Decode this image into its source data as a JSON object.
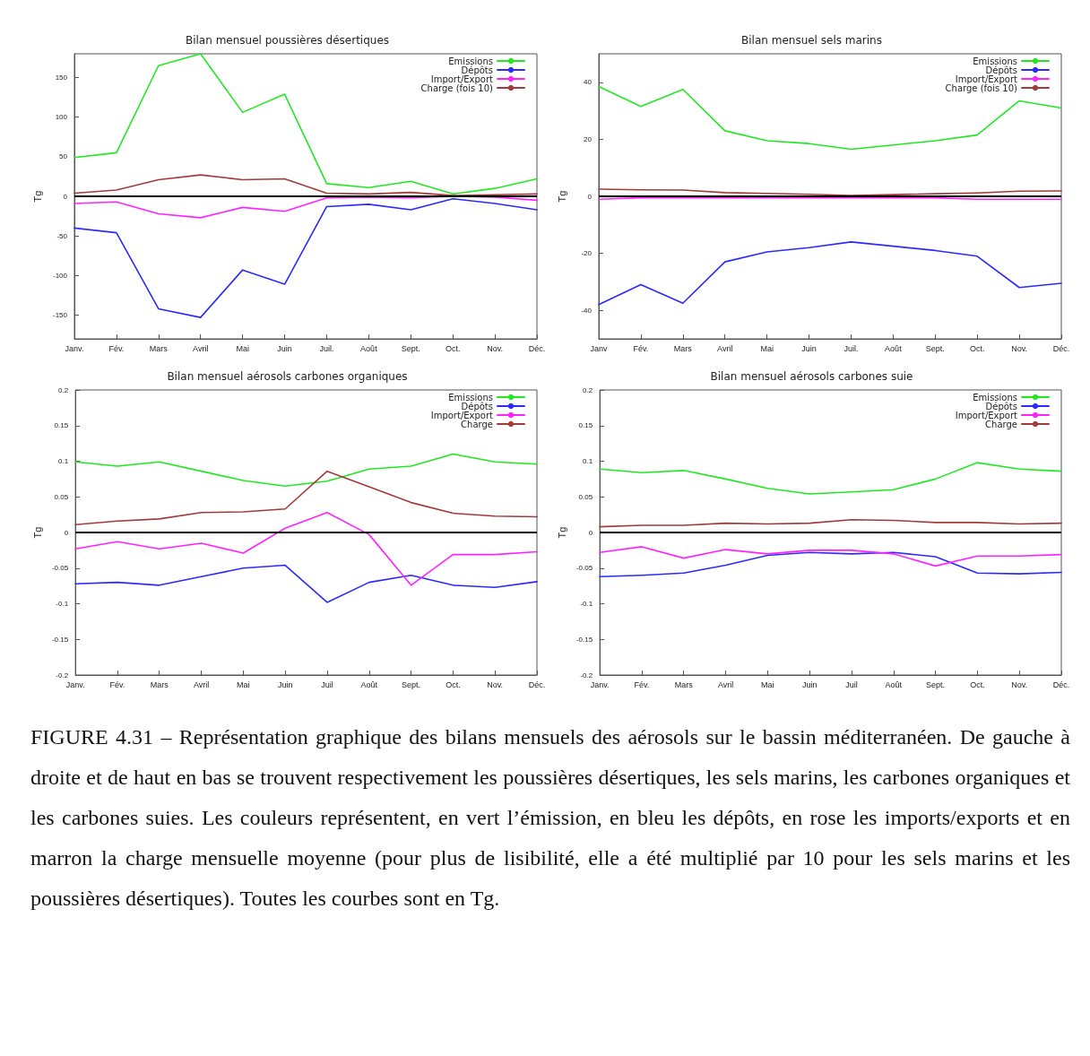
{
  "chart_data": [
    {
      "type": "line",
      "title": "Bilan mensuel poussières désertiques",
      "ylabel": "Tg",
      "categories": [
        "Janv.",
        "Fév.",
        "Mars",
        "Avril",
        "Mai",
        "Juin",
        "Juil.",
        "Août",
        "Sept.",
        "Oct.",
        "Nov.",
        "Déc."
      ],
      "ylim": [
        -180,
        180
      ],
      "yticks": [
        -150,
        -100,
        -50,
        0,
        50,
        100,
        150
      ],
      "legend": "top right",
      "ref_lines": [
        {
          "axis": "y",
          "value": 0,
          "color": "#000000"
        }
      ],
      "series": [
        {
          "name": "Emissions",
          "color": "#22e822",
          "values": [
            49,
            55,
            165,
            180,
            106,
            129,
            16,
            11,
            19,
            3,
            10,
            22
          ]
        },
        {
          "name": "Dépôts",
          "color": "#2a2aff",
          "values": [
            -40,
            -46,
            -142,
            -153,
            -93,
            -111,
            -13,
            -10,
            -17,
            -3,
            -9,
            -17
          ]
        },
        {
          "name": "Import/Export",
          "color": "#ff22ff",
          "values": [
            -9,
            -7,
            -22,
            -27,
            -14,
            -19,
            -2,
            -1,
            -2,
            0,
            -1,
            -5
          ]
        },
        {
          "name": "Charge (fois 10)",
          "color": "#a33a3a",
          "values": [
            4,
            8,
            21,
            27,
            21,
            22,
            4,
            3,
            5,
            1,
            2,
            3
          ]
        }
      ]
    },
    {
      "type": "line",
      "title": "Bilan mensuel sels marins",
      "ylabel": "Tg",
      "categories": [
        "Janv",
        "Fév.",
        "Mars",
        "Avril",
        "Mai",
        "Juin",
        "Juil.",
        "Août",
        "Sept.",
        "Oct.",
        "Nov.",
        "Déc."
      ],
      "ylim": [
        -50,
        50
      ],
      "yticks": [
        -40,
        -20,
        0,
        20,
        40
      ],
      "legend": "top right",
      "ref_lines": [
        {
          "axis": "y",
          "value": 0,
          "color": "#000000"
        }
      ],
      "series": [
        {
          "name": "Emissions",
          "color": "#22e822",
          "values": [
            38.5,
            31.5,
            37.5,
            23,
            19.5,
            18.5,
            16.5,
            18,
            19.5,
            21.5,
            33.5,
            31
          ]
        },
        {
          "name": "Dépôts",
          "color": "#2a2aff",
          "values": [
            -38,
            -31,
            -37.5,
            -23,
            -19.5,
            -18,
            -16,
            -17.5,
            -19,
            -21,
            -32,
            -30.5
          ]
        },
        {
          "name": "Import/Export",
          "color": "#ff22ff",
          "values": [
            -1,
            -0.5,
            -0.5,
            -0.5,
            -0.5,
            -0.5,
            -0.5,
            -0.5,
            -0.5,
            -1,
            -1,
            -1
          ]
        },
        {
          "name": "Charge (fois 10)",
          "color": "#a33a3a",
          "values": [
            2.5,
            2.3,
            2.2,
            1.3,
            1,
            0.7,
            0.3,
            0.6,
            0.9,
            1.2,
            1.8,
            1.9
          ]
        }
      ]
    },
    {
      "type": "line",
      "title": "Bilan mensuel aérosols carbones organiques",
      "ylabel": "Tg",
      "categories": [
        "Janv.",
        "Fév.",
        "Mars",
        "Avril",
        "Mai",
        "Juin",
        "Juil",
        "Août",
        "Sept.",
        "Oct.",
        "Nov.",
        "Déc."
      ],
      "ylim": [
        -0.2,
        0.2
      ],
      "yticks": [
        -0.2,
        -0.15,
        -0.1,
        -0.05,
        0,
        0.05,
        0.1,
        0.15,
        0.2
      ],
      "legend": "top right",
      "ref_lines": [
        {
          "axis": "y",
          "value": 0,
          "color": "#000000"
        }
      ],
      "series": [
        {
          "name": "Emissions",
          "color": "#22e822",
          "values": [
            0.099,
            0.093,
            0.099,
            0.086,
            0.073,
            0.065,
            0.072,
            0.089,
            0.093,
            0.11,
            0.099,
            0.096
          ]
        },
        {
          "name": "Dépôts",
          "color": "#2a2aff",
          "values": [
            -0.072,
            -0.07,
            -0.074,
            -0.062,
            -0.05,
            -0.046,
            -0.098,
            -0.07,
            -0.06,
            -0.074,
            -0.077,
            -0.069
          ]
        },
        {
          "name": "Import/Export",
          "color": "#ff22ff",
          "values": [
            -0.023,
            -0.013,
            -0.023,
            -0.015,
            -0.029,
            0.006,
            0.028,
            -0.003,
            -0.074,
            -0.031,
            -0.031,
            -0.027
          ]
        },
        {
          "name": "Charge",
          "color": "#a33a3a",
          "values": [
            0.011,
            0.016,
            0.019,
            0.028,
            0.029,
            0.033,
            0.086,
            0.064,
            0.042,
            0.027,
            0.023,
            0.022
          ]
        }
      ]
    },
    {
      "type": "line",
      "title": "Bilan mensuel aérosols carbones suie",
      "ylabel": "Tg",
      "categories": [
        "Janv.",
        "Fév.",
        "Mars",
        "Avril",
        "Mai",
        "Juin",
        "Juil",
        "Août",
        "Sept.",
        "Oct.",
        "Nov.",
        "Déc."
      ],
      "ylim": [
        -0.2,
        0.2
      ],
      "yticks": [
        -0.2,
        -0.15,
        -0.1,
        -0.05,
        0,
        0.05,
        0.1,
        0.15,
        0.2
      ],
      "legend": "top right",
      "ref_lines": [
        {
          "axis": "y",
          "value": 0,
          "color": "#000000"
        }
      ],
      "series": [
        {
          "name": "Emissions",
          "color": "#22e822",
          "values": [
            0.089,
            0.084,
            0.087,
            0.075,
            0.062,
            0.054,
            0.057,
            0.06,
            0.075,
            0.098,
            0.089,
            0.086
          ]
        },
        {
          "name": "Dépôts",
          "color": "#2a2aff",
          "values": [
            -0.062,
            -0.06,
            -0.057,
            -0.046,
            -0.032,
            -0.028,
            -0.03,
            -0.028,
            -0.034,
            -0.057,
            -0.058,
            -0.056
          ]
        },
        {
          "name": "Import/Export",
          "color": "#ff22ff",
          "values": [
            -0.028,
            -0.02,
            -0.036,
            -0.024,
            -0.03,
            -0.025,
            -0.025,
            -0.03,
            -0.047,
            -0.033,
            -0.033,
            -0.031
          ]
        },
        {
          "name": "Charge",
          "color": "#a33a3a",
          "values": [
            0.008,
            0.01,
            0.01,
            0.013,
            0.012,
            0.013,
            0.018,
            0.017,
            0.014,
            0.014,
            0.012,
            0.013
          ]
        }
      ]
    },
    {
      "type": "other",
      "annotations": [
        "FIGURE 4.31 – Représentation graphique des bilans mensuels des aérosols sur le bassin méditerranéen. De gauche à droite et de haut en bas se trouvent respectivement les poussières désertiques, les sels marins, les carbones organiques et les carbones suies. Les couleurs représentent, en vert l’émission, en bleu les dépôts, en rose les imports/exports et en marron la charge mensuelle moyenne (pour plus de lisibilité, elle a été multiplié par 10 pour les sels marins et les poussières désertiques). Toutes les courbes sont en Tg."
      ]
    }
  ]
}
